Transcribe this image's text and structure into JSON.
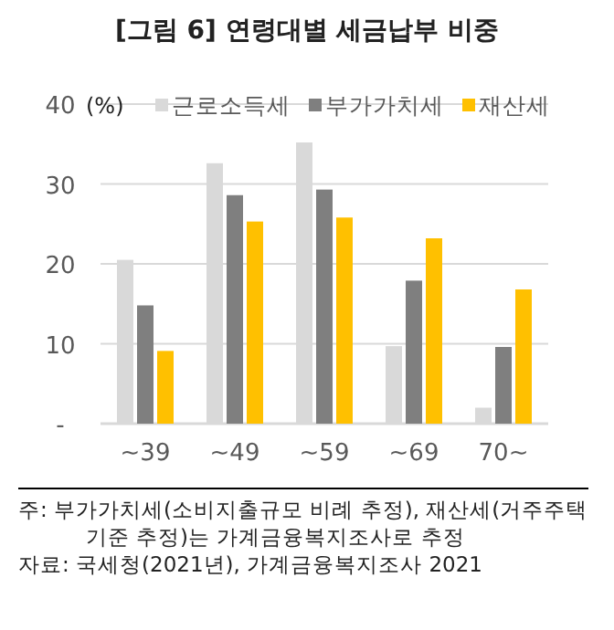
{
  "chart_data": {
    "type": "bar",
    "title": "[그림 6] 연령대별 세금납부 비중",
    "ylabel": "(%)",
    "categories": [
      "~39",
      "~49",
      "~59",
      "~69",
      "70~"
    ],
    "series": [
      {
        "name": "근로소득세",
        "color": "#d9d9d9",
        "values": [
          20.5,
          32.6,
          35.2,
          9.7,
          2.0
        ]
      },
      {
        "name": "부가가치세",
        "color": "#7f7f7f",
        "values": [
          14.8,
          28.6,
          29.3,
          17.9,
          9.6
        ]
      },
      {
        "name": "재산세",
        "color": "#ffc000",
        "values": [
          9.1,
          25.3,
          25.8,
          23.2,
          16.8
        ]
      }
    ],
    "ylim": [
      0,
      40
    ],
    "yticks": [
      {
        "value": 0,
        "label": "-"
      },
      10,
      20,
      30,
      40
    ],
    "grid": "y",
    "legend": "top",
    "annotations": [
      "주: 부가가치세(소비지출규모 비례 추정), 재산세(거주주택기준 추정)는 가계금융복지조사로 추정",
      "자료: 국세청(2021년), 가계금융복지조사 2021"
    ]
  }
}
